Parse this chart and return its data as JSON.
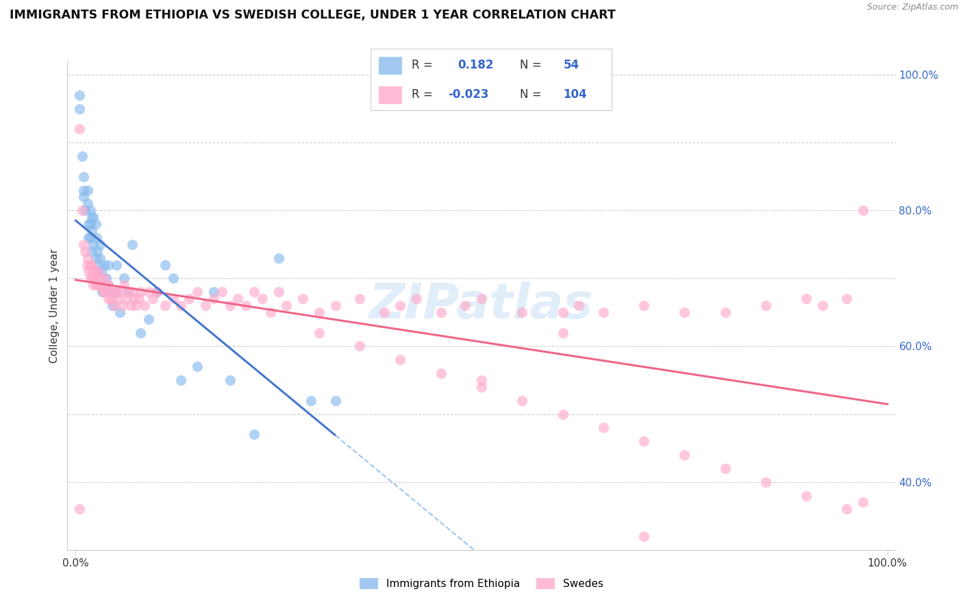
{
  "title": "IMMIGRANTS FROM ETHIOPIA VS SWEDISH COLLEGE, UNDER 1 YEAR CORRELATION CHART",
  "source": "Source: ZipAtlas.com",
  "ylabel": "College, Under 1 year",
  "blue_color": "#88BBEE",
  "pink_color": "#FFAACC",
  "blue_line_color": "#4477CC",
  "pink_line_color": "#EE6688",
  "dashed_line_color": "#88BBEE",
  "watermark_color": "#AACCEE",
  "blue_r": 0.182,
  "blue_n": 54,
  "pink_r": -0.023,
  "pink_n": 104,
  "blue_scatter_x": [
    0.005,
    0.005,
    0.008,
    0.01,
    0.01,
    0.01,
    0.012,
    0.015,
    0.015,
    0.016,
    0.016,
    0.018,
    0.018,
    0.018,
    0.02,
    0.02,
    0.02,
    0.022,
    0.022,
    0.025,
    0.025,
    0.026,
    0.027,
    0.028,
    0.028,
    0.03,
    0.03,
    0.032,
    0.033,
    0.035,
    0.038,
    0.04,
    0.04,
    0.042,
    0.045,
    0.05,
    0.05,
    0.055,
    0.06,
    0.065,
    0.07,
    0.08,
    0.09,
    0.1,
    0.11,
    0.12,
    0.13,
    0.15,
    0.17,
    0.19,
    0.22,
    0.25,
    0.29,
    0.32
  ],
  "blue_scatter_y": [
    0.97,
    0.95,
    0.88,
    0.85,
    0.83,
    0.82,
    0.8,
    0.83,
    0.81,
    0.78,
    0.76,
    0.8,
    0.78,
    0.76,
    0.79,
    0.77,
    0.74,
    0.79,
    0.75,
    0.78,
    0.73,
    0.76,
    0.74,
    0.72,
    0.71,
    0.75,
    0.73,
    0.71,
    0.68,
    0.72,
    0.7,
    0.72,
    0.69,
    0.68,
    0.66,
    0.72,
    0.68,
    0.65,
    0.7,
    0.68,
    0.75,
    0.62,
    0.64,
    0.68,
    0.72,
    0.7,
    0.55,
    0.57,
    0.68,
    0.55,
    0.47,
    0.73,
    0.52,
    0.52
  ],
  "pink_scatter_x": [
    0.005,
    0.008,
    0.01,
    0.012,
    0.014,
    0.015,
    0.016,
    0.018,
    0.018,
    0.02,
    0.02,
    0.022,
    0.022,
    0.024,
    0.025,
    0.026,
    0.028,
    0.028,
    0.03,
    0.032,
    0.034,
    0.035,
    0.036,
    0.038,
    0.04,
    0.04,
    0.042,
    0.044,
    0.046,
    0.048,
    0.05,
    0.052,
    0.055,
    0.058,
    0.06,
    0.062,
    0.065,
    0.068,
    0.07,
    0.072,
    0.075,
    0.078,
    0.08,
    0.085,
    0.09,
    0.095,
    0.1,
    0.11,
    0.12,
    0.13,
    0.14,
    0.15,
    0.16,
    0.17,
    0.18,
    0.19,
    0.2,
    0.21,
    0.22,
    0.23,
    0.24,
    0.25,
    0.26,
    0.28,
    0.3,
    0.32,
    0.35,
    0.38,
    0.4,
    0.42,
    0.45,
    0.48,
    0.5,
    0.55,
    0.6,
    0.62,
    0.65,
    0.7,
    0.75,
    0.8,
    0.85,
    0.9,
    0.92,
    0.95,
    0.97,
    0.3,
    0.35,
    0.4,
    0.45,
    0.5,
    0.55,
    0.6,
    0.65,
    0.7,
    0.75,
    0.8,
    0.85,
    0.9,
    0.95,
    0.97,
    0.005,
    0.5,
    0.6,
    0.7
  ],
  "pink_scatter_y": [
    0.92,
    0.8,
    0.75,
    0.74,
    0.72,
    0.73,
    0.71,
    0.72,
    0.7,
    0.72,
    0.7,
    0.71,
    0.69,
    0.7,
    0.71,
    0.69,
    0.71,
    0.69,
    0.7,
    0.69,
    0.68,
    0.7,
    0.68,
    0.69,
    0.69,
    0.67,
    0.68,
    0.67,
    0.68,
    0.66,
    0.68,
    0.67,
    0.68,
    0.66,
    0.69,
    0.67,
    0.68,
    0.66,
    0.68,
    0.67,
    0.66,
    0.67,
    0.68,
    0.66,
    0.68,
    0.67,
    0.68,
    0.66,
    0.67,
    0.66,
    0.67,
    0.68,
    0.66,
    0.67,
    0.68,
    0.66,
    0.67,
    0.66,
    0.68,
    0.67,
    0.65,
    0.68,
    0.66,
    0.67,
    0.65,
    0.66,
    0.67,
    0.65,
    0.66,
    0.67,
    0.65,
    0.66,
    0.67,
    0.65,
    0.65,
    0.66,
    0.65,
    0.66,
    0.65,
    0.65,
    0.66,
    0.67,
    0.66,
    0.67,
    0.8,
    0.62,
    0.6,
    0.58,
    0.56,
    0.54,
    0.52,
    0.5,
    0.48,
    0.46,
    0.44,
    0.42,
    0.4,
    0.38,
    0.36,
    0.37,
    0.36,
    0.55,
    0.62,
    0.32
  ]
}
